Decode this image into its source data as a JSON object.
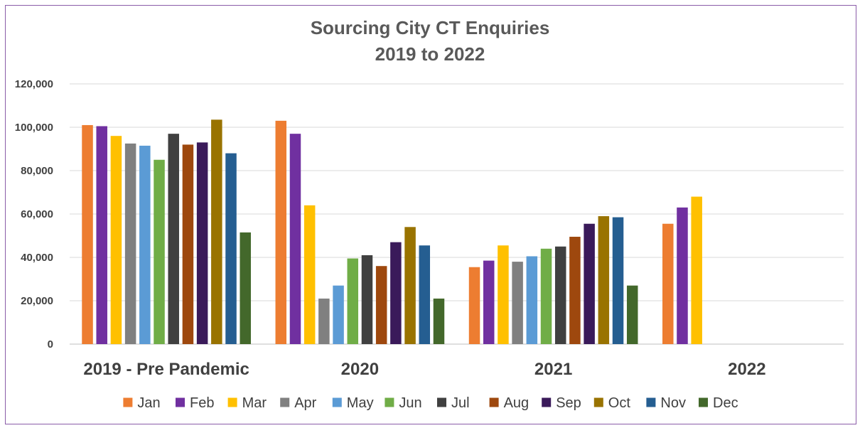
{
  "chart_data": {
    "type": "bar",
    "title": "Sourcing City CT Enquiries",
    "subtitle": "2019 to 2022",
    "xlabel": "",
    "ylabel": "",
    "ylim": [
      0,
      120000
    ],
    "yticks": [
      "0",
      "20,000",
      "40,000",
      "60,000",
      "80,000",
      "100,000",
      "120,000"
    ],
    "categories": [
      "2019 - Pre Pandemic",
      "2020",
      "2021",
      "2022"
    ],
    "grid": true,
    "legend_position": "bottom",
    "series": [
      {
        "name": "Jan",
        "color": "#ED7D31",
        "values": [
          101000,
          103000,
          35500,
          55500
        ]
      },
      {
        "name": "Feb",
        "color": "#7030A0",
        "values": [
          100500,
          97000,
          38500,
          63000
        ]
      },
      {
        "name": "Mar",
        "color": "#FFC000",
        "values": [
          96000,
          64000,
          45500,
          68000
        ]
      },
      {
        "name": "Apr",
        "color": "#808080",
        "values": [
          92500,
          21000,
          38000,
          null
        ]
      },
      {
        "name": "May",
        "color": "#5B9BD5",
        "values": [
          91500,
          27000,
          40500,
          null
        ]
      },
      {
        "name": "Jun",
        "color": "#70AD47",
        "values": [
          85000,
          39500,
          44000,
          null
        ]
      },
      {
        "name": "Jul",
        "color": "#404040",
        "values": [
          97000,
          41000,
          45000,
          null
        ]
      },
      {
        "name": "Aug",
        "color": "#9E480E",
        "values": [
          92000,
          36000,
          49500,
          null
        ]
      },
      {
        "name": "Sep",
        "color": "#3A1A5A",
        "values": [
          93000,
          47000,
          55500,
          null
        ]
      },
      {
        "name": "Oct",
        "color": "#997300",
        "values": [
          103500,
          54000,
          59000,
          null
        ]
      },
      {
        "name": "Nov",
        "color": "#255E91",
        "values": [
          88000,
          45500,
          58500,
          null
        ]
      },
      {
        "name": "Dec",
        "color": "#43682B",
        "values": [
          51500,
          21000,
          27000,
          null
        ]
      }
    ]
  }
}
